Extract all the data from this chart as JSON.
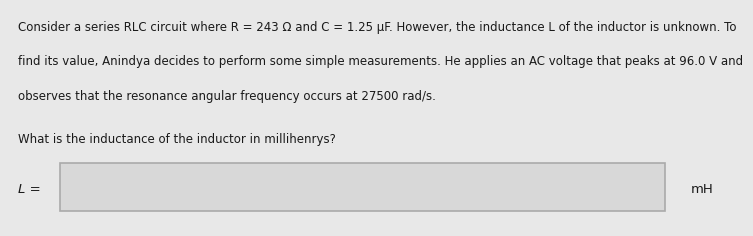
{
  "line1": "Consider a series RLC circuit where R = 243 Ω and C = 1.25 μF. However, the inductance L of the inductor is unknown. To",
  "line2": "find its value, Anindya decides to perform some simple measurements. He applies an AC voltage that peaks at 96.0 V and",
  "line3": "observes that the resonance angular frequency occurs at 27500 rad/s.",
  "line4": "What is the inductance of the inductor in millihenrys?",
  "label_left": "L =",
  "label_right": "mH",
  "bg_color": "#e8e8e8",
  "box_bg": "#d8d8d8",
  "box_edge": "#aaaaaa",
  "text_color": "#1a1a1a",
  "font_size": 8.5,
  "label_font_size": 9.5
}
